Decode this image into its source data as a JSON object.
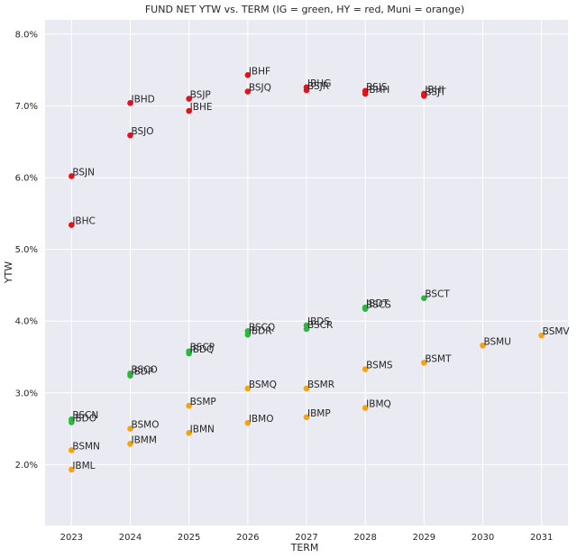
{
  "chart_data": {
    "type": "scatter",
    "title": "FUND NET YTW vs. TERM (IG = green, HY = red, Muni = orange)",
    "xlabel": "TERM",
    "ylabel": "YTW",
    "xlim": [
      2022.55,
      2031.45
    ],
    "ylim": [
      1.15,
      8.2
    ],
    "x_ticks": [
      2023,
      2024,
      2025,
      2026,
      2027,
      2028,
      2029,
      2030,
      2031
    ],
    "x_tick_labels": [
      "2023",
      "2024",
      "2025",
      "2026",
      "2027",
      "2028",
      "2029",
      "2030",
      "2031"
    ],
    "y_ticks": [
      2,
      3,
      4,
      5,
      6,
      7,
      8
    ],
    "y_tick_labels": [
      "2.0%",
      "3.0%",
      "4.0%",
      "5.0%",
      "6.0%",
      "7.0%",
      "8.0%"
    ],
    "grid": true,
    "background": "#eaeaf2",
    "series": [
      {
        "name": "HY",
        "color": "#e3131b",
        "points": [
          {
            "label": "IBHC",
            "x": 2023,
            "y": 5.34
          },
          {
            "label": "BSJN",
            "x": 2023,
            "y": 6.02
          },
          {
            "label": "BSJO",
            "x": 2024,
            "y": 6.59
          },
          {
            "label": "IBHD",
            "x": 2024,
            "y": 7.04
          },
          {
            "label": "IBHE",
            "x": 2025,
            "y": 6.93
          },
          {
            "label": "BSJP",
            "x": 2025,
            "y": 7.1
          },
          {
            "label": "BSJQ",
            "x": 2026,
            "y": 7.2
          },
          {
            "label": "IBHF",
            "x": 2026,
            "y": 7.43
          },
          {
            "label": "IBHG",
            "x": 2027,
            "y": 7.26
          },
          {
            "label": "BSJR",
            "x": 2027,
            "y": 7.22
          },
          {
            "label": "BSJS",
            "x": 2028,
            "y": 7.21
          },
          {
            "label": "IBHH",
            "x": 2028,
            "y": 7.17
          },
          {
            "label": "IBHI",
            "x": 2029,
            "y": 7.17
          },
          {
            "label": "BSJT",
            "x": 2029,
            "y": 7.14
          }
        ]
      },
      {
        "name": "IG",
        "color": "#2db83d",
        "points": [
          {
            "label": "BSCN",
            "x": 2023,
            "y": 2.63
          },
          {
            "label": "IBDO",
            "x": 2023,
            "y": 2.59
          },
          {
            "label": "BSCO",
            "x": 2024,
            "y": 3.27
          },
          {
            "label": "IBDP",
            "x": 2024,
            "y": 3.24
          },
          {
            "label": "BSCP",
            "x": 2025,
            "y": 3.58
          },
          {
            "label": "IBDQ",
            "x": 2025,
            "y": 3.55
          },
          {
            "label": "BSCQ",
            "x": 2026,
            "y": 3.86
          },
          {
            "label": "IBDR",
            "x": 2026,
            "y": 3.81
          },
          {
            "label": "IBDS",
            "x": 2027,
            "y": 3.94
          },
          {
            "label": "BSCR",
            "x": 2027,
            "y": 3.89
          },
          {
            "label": "IBDT",
            "x": 2028,
            "y": 4.19
          },
          {
            "label": "BSCS",
            "x": 2028,
            "y": 4.17
          },
          {
            "label": "BSCT",
            "x": 2029,
            "y": 4.32
          }
        ]
      },
      {
        "name": "Muni",
        "color": "#f5a30e",
        "points": [
          {
            "label": "IBML",
            "x": 2023,
            "y": 1.93
          },
          {
            "label": "BSMN",
            "x": 2023,
            "y": 2.2
          },
          {
            "label": "IBMM",
            "x": 2024,
            "y": 2.29
          },
          {
            "label": "BSMO",
            "x": 2024,
            "y": 2.5
          },
          {
            "label": "IBMN",
            "x": 2025,
            "y": 2.44
          },
          {
            "label": "BSMP",
            "x": 2025,
            "y": 2.82
          },
          {
            "label": "IBMO",
            "x": 2026,
            "y": 2.58
          },
          {
            "label": "BSMQ",
            "x": 2026,
            "y": 3.06
          },
          {
            "label": "IBMP",
            "x": 2027,
            "y": 2.66
          },
          {
            "label": "BSMR",
            "x": 2027,
            "y": 3.06
          },
          {
            "label": "IBMQ",
            "x": 2028,
            "y": 2.79
          },
          {
            "label": "BSMS",
            "x": 2028,
            "y": 3.33
          },
          {
            "label": "BSMT",
            "x": 2029,
            "y": 3.42
          },
          {
            "label": "BSMU",
            "x": 2030,
            "y": 3.66
          },
          {
            "label": "BSMV",
            "x": 2031,
            "y": 3.8
          }
        ]
      }
    ]
  }
}
